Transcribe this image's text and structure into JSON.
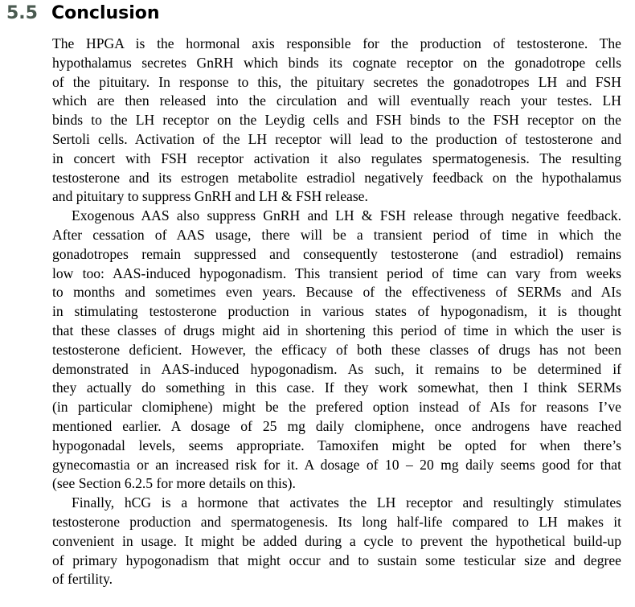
{
  "section": {
    "number": "5.5",
    "title": "Conclusion"
  },
  "paragraphs": [
    {
      "lines": [
        "The HPGA is the hormonal axis responsible for the production of testosterone. The",
        "hypothalamus secretes GnRH which binds its cognate receptor on the gonadotrope cells",
        "of the pituitary. In response to this, the pituitary secretes the gonadotropes LH and FSH",
        "which are then released into the circulation and will eventually reach your testes. LH",
        "binds to the LH receptor on the Leydig cells and FSH binds to the FSH receptor on the",
        "Sertoli cells. Activation of the LH receptor will lead to the production of testosterone and",
        "in concert with FSH receptor activation it also regulates spermatogenesis. The resulting",
        "testosterone and its estrogen metabolite estradiol negatively feedback on the hypothalamus",
        "and pituitary to suppress GnRH and LH & FSH release."
      ]
    },
    {
      "lines": [
        "Exogenous AAS also suppress GnRH and LH & FSH release through negative feedback.",
        "After cessation of AAS usage, there will be a transient period of time in which the",
        "gonadotropes remain suppressed and consequently testosterone (and estradiol) remains",
        "low too: AAS-induced hypogonadism. This transient period of time can vary from weeks",
        "to months and sometimes even years. Because of the effectiveness of SERMs and AIs",
        "in stimulating testosterone production in various states of hypogonadism, it is thought",
        "that these classes of drugs might aid in shortening this period of time in which the user is",
        "testosterone deficient. However, the efficacy of both these classes of drugs has not been",
        "demonstrated in AAS-induced hypogonadism. As such, it remains to be determined if",
        "they actually do something in this case. If they work somewhat, then I think SERMs",
        "(in particular clomiphene) might be the prefered option instead of AIs for reasons I’ve",
        "mentioned earlier. A dosage of 25 mg daily clomiphene, once androgens have reached",
        "hypogonadal levels, seems appropriate. Tamoxifen might be opted for when there’s",
        "gynecomastia or an increased risk for it. A dosage of 10 – 20 mg daily seems good for that",
        "(see Section 6.2.5 for more details on this)."
      ]
    },
    {
      "lines": [
        "Finally, hCG is a hormone that activates the LH receptor and resultingly stimulates",
        "testosterone production and spermatogenesis. Its long half-life compared to LH makes it",
        "convenient in usage. It might be added during a cycle to prevent the hypothetical build-up",
        "of primary hypogonadism that might occur and to sustain some testicular size and degree",
        "of fertility."
      ]
    }
  ]
}
